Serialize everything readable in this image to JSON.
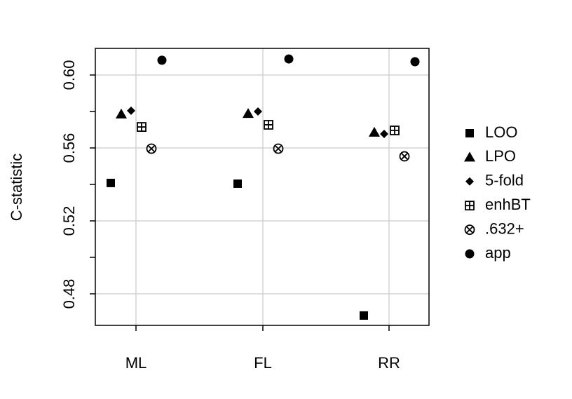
{
  "chart_data": {
    "type": "dotplot",
    "y_label": "C-statistic",
    "categories": [
      "ML",
      "FL",
      "RR"
    ],
    "ylim": [
      0.4627,
      0.6146
    ],
    "yticks": [
      0.48,
      0.52,
      0.56,
      {
        "value": 0.6,
        "label": "0.60"
      }
    ],
    "yminor_ticks": [
      0.5,
      0.54,
      0.58
    ],
    "grid": true,
    "legend": "right",
    "series": [
      {
        "name": "LOO",
        "marker": "square",
        "color": "#000000",
        "values": [
          0.5408,
          0.5404,
          0.4681
        ]
      },
      {
        "name": "LPO",
        "marker": "triangle",
        "color": "#000000",
        "values": [
          0.5785,
          0.5788,
          0.5685
        ]
      },
      {
        "name": "5-fold",
        "marker": "diamond",
        "color": "#000000",
        "values": [
          0.5804,
          0.58,
          0.5677
        ]
      },
      {
        "name": "enhBT",
        "marker": "square-plus",
        "color": "#000000",
        "values": [
          0.5715,
          0.5727,
          0.5696
        ]
      },
      {
        "name": ".632+",
        "marker": "circle-x",
        "color": "#000000",
        "values": [
          0.5596,
          0.5596,
          0.5554
        ]
      },
      {
        "name": "app",
        "marker": "circle",
        "color": "#000000",
        "values": [
          0.6081,
          0.6088,
          0.6073
        ]
      }
    ]
  }
}
